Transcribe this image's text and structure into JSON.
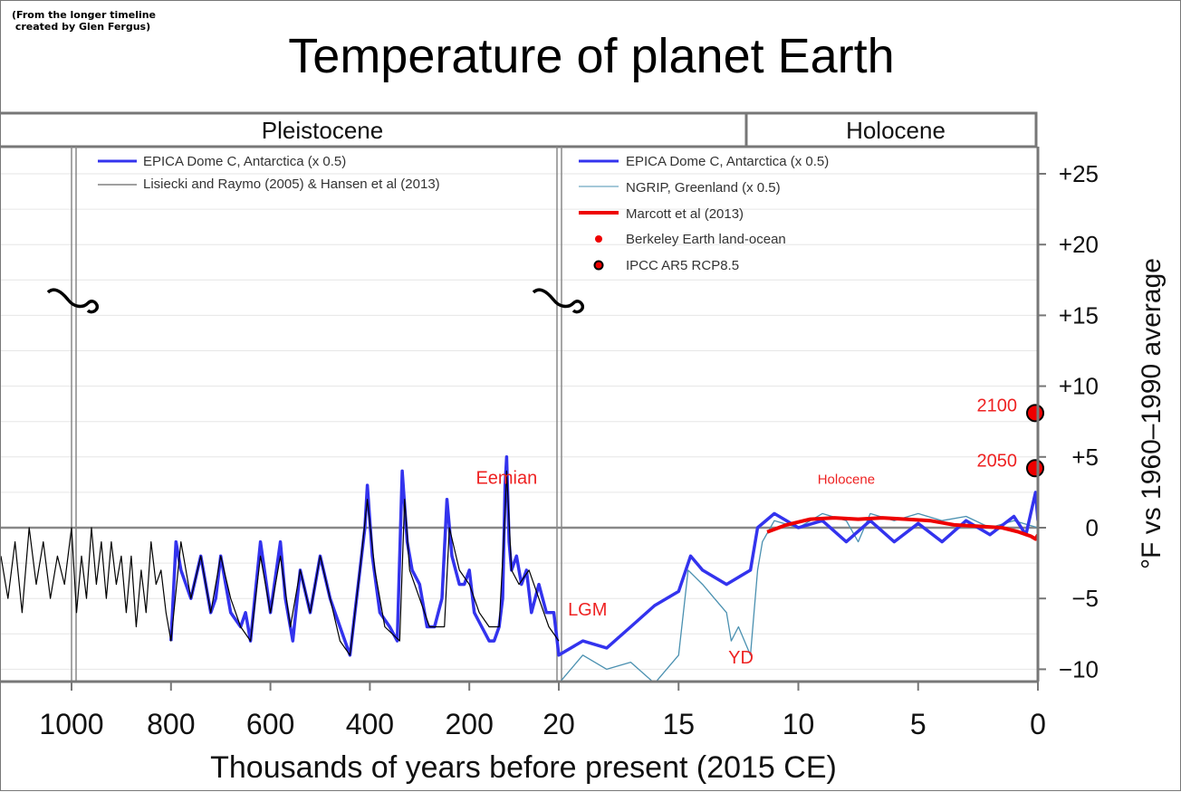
{
  "credit": "(From the longer timeline\n created by Glen Fergus)",
  "chart_data": {
    "type": "line",
    "title": "Temperature of planet Earth",
    "xlabel": "Thousands of years before present (2015 CE)",
    "ylabel": "°F vs 1960–1990 average",
    "ylim": [
      -11,
      27
    ],
    "x_segments": [
      {
        "name": "deep",
        "from_kyr": 1100,
        "to_kyr": 1000
      },
      {
        "name": "pleistocene-long",
        "from_kyr": 1000,
        "to_kyr": 20
      },
      {
        "name": "recent",
        "from_kyr": 20,
        "to_kyr": 0
      }
    ],
    "x_tick_labels": [
      "1000",
      "800",
      "600",
      "400",
      "200",
      "20",
      "15",
      "10",
      "5",
      "0"
    ],
    "x_tick_values_kyr": [
      1000,
      800,
      600,
      400,
      200,
      20,
      15,
      10,
      5,
      0
    ],
    "y_tick_labels": [
      "+25",
      "+20",
      "+15",
      "+10",
      "+5",
      "0",
      "−5",
      "−10"
    ],
    "y_tick_values": [
      25,
      20,
      15,
      10,
      5,
      0,
      -5,
      -10
    ],
    "epochs": [
      {
        "label": "Pleistocene"
      },
      {
        "label": "Holocene"
      }
    ],
    "legend_left": [
      {
        "label": "EPICA Dome C, Antarctica (x 0.5)",
        "color": "#3333ee"
      },
      {
        "label": "Lisiecki and Raymo (2005) & Hansen et al (2013)",
        "color": "#000000"
      }
    ],
    "legend_right": [
      {
        "label": "EPICA Dome C, Antarctica (x 0.5)",
        "color": "#3333ee"
      },
      {
        "label": "NGRIP, Greenland (x 0.5)",
        "color": "#4a90b0"
      },
      {
        "label": "Marcott et al (2013)",
        "color": "#ee0000"
      },
      {
        "label": "Berkeley Earth land-ocean",
        "color": "#ee0000"
      },
      {
        "label": "IPCC AR5 RCP8.5",
        "color": "#ee0000"
      }
    ],
    "annotations": [
      {
        "label": "Eemian",
        "x_kyr": 125,
        "y": 3.1
      },
      {
        "label": "LGM",
        "x_kyr": 18.8,
        "y": -6.2
      },
      {
        "label": "YD",
        "x_kyr": 12.4,
        "y": -9.6
      },
      {
        "label": "Holocene",
        "x_kyr": 8,
        "y": 3.1
      }
    ],
    "projections": [
      {
        "label": "2100",
        "x_kyr": 0,
        "y": 8.1
      },
      {
        "label": "2050",
        "x_kyr": 0,
        "y": 4.2
      }
    ],
    "series": [
      {
        "name": "Lisiecki and Raymo (2005) & Hansen et al (2013)",
        "color": "#000000",
        "points": [
          [
            1100,
            -2
          ],
          [
            1090,
            -5
          ],
          [
            1080,
            -1
          ],
          [
            1070,
            -6
          ],
          [
            1060,
            0
          ],
          [
            1050,
            -4
          ],
          [
            1040,
            -1
          ],
          [
            1030,
            -5
          ],
          [
            1020,
            -2
          ],
          [
            1010,
            -4
          ],
          [
            1000,
            0
          ],
          [
            990,
            -6
          ],
          [
            980,
            -2
          ],
          [
            970,
            -5
          ],
          [
            960,
            0
          ],
          [
            950,
            -4
          ],
          [
            940,
            -1
          ],
          [
            930,
            -5
          ],
          [
            920,
            -1
          ],
          [
            910,
            -4
          ],
          [
            900,
            -2
          ],
          [
            890,
            -6
          ],
          [
            880,
            -2
          ],
          [
            870,
            -7
          ],
          [
            860,
            -3
          ],
          [
            850,
            -6
          ],
          [
            840,
            -1
          ],
          [
            830,
            -4
          ],
          [
            820,
            -3
          ],
          [
            810,
            -6
          ],
          [
            800,
            -8
          ],
          [
            780,
            -1
          ],
          [
            760,
            -5
          ],
          [
            740,
            -2
          ],
          [
            720,
            -6
          ],
          [
            700,
            -2
          ],
          [
            680,
            -5
          ],
          [
            660,
            -7
          ],
          [
            640,
            -8
          ],
          [
            620,
            -2
          ],
          [
            600,
            -6
          ],
          [
            580,
            -2
          ],
          [
            560,
            -7
          ],
          [
            540,
            -3
          ],
          [
            520,
            -6
          ],
          [
            500,
            -2
          ],
          [
            480,
            -5
          ],
          [
            460,
            -8
          ],
          [
            440,
            -9
          ],
          [
            420,
            -3
          ],
          [
            405,
            2
          ],
          [
            390,
            -3
          ],
          [
            370,
            -7
          ],
          [
            340,
            -8
          ],
          [
            330,
            2
          ],
          [
            320,
            -3
          ],
          [
            300,
            -5
          ],
          [
            280,
            -7
          ],
          [
            250,
            -7
          ],
          [
            240,
            0
          ],
          [
            220,
            -3
          ],
          [
            200,
            -4
          ],
          [
            180,
            -6
          ],
          [
            160,
            -7
          ],
          [
            140,
            -7
          ],
          [
            128,
            1
          ],
          [
            125,
            4
          ],
          [
            115,
            -3
          ],
          [
            100,
            -4
          ],
          [
            80,
            -3
          ],
          [
            60,
            -5
          ],
          [
            40,
            -7
          ],
          [
            20,
            -8
          ]
        ]
      },
      {
        "name": "EPICA Dome C, Antarctica (x 0.5)",
        "color": "#3333ee",
        "points": [
          [
            800,
            -8
          ],
          [
            790,
            -1
          ],
          [
            780,
            -3
          ],
          [
            760,
            -5
          ],
          [
            740,
            -2
          ],
          [
            720,
            -6
          ],
          [
            710,
            -5
          ],
          [
            700,
            -2
          ],
          [
            690,
            -4
          ],
          [
            680,
            -6
          ],
          [
            660,
            -7
          ],
          [
            650,
            -6
          ],
          [
            640,
            -8
          ],
          [
            620,
            -1
          ],
          [
            600,
            -6
          ],
          [
            580,
            -1
          ],
          [
            570,
            -5
          ],
          [
            555,
            -8
          ],
          [
            540,
            -3
          ],
          [
            520,
            -6
          ],
          [
            500,
            -2
          ],
          [
            480,
            -5
          ],
          [
            460,
            -7
          ],
          [
            440,
            -9
          ],
          [
            430,
            -6
          ],
          [
            410,
            0
          ],
          [
            405,
            3
          ],
          [
            395,
            -2
          ],
          [
            380,
            -6
          ],
          [
            360,
            -7
          ],
          [
            345,
            -8
          ],
          [
            335,
            4
          ],
          [
            325,
            -1
          ],
          [
            315,
            -3
          ],
          [
            300,
            -4
          ],
          [
            285,
            -7
          ],
          [
            270,
            -7
          ],
          [
            255,
            -5
          ],
          [
            245,
            2
          ],
          [
            235,
            -2
          ],
          [
            220,
            -4
          ],
          [
            210,
            -4
          ],
          [
            200,
            -3
          ],
          [
            190,
            -6
          ],
          [
            175,
            -7
          ],
          [
            160,
            -8
          ],
          [
            150,
            -8
          ],
          [
            140,
            -7
          ],
          [
            133,
            -5
          ],
          [
            128,
            3
          ],
          [
            125,
            5
          ],
          [
            120,
            -1
          ],
          [
            115,
            -3
          ],
          [
            105,
            -2
          ],
          [
            95,
            -4
          ],
          [
            85,
            -3
          ],
          [
            75,
            -6
          ],
          [
            60,
            -4
          ],
          [
            45,
            -6
          ],
          [
            30,
            -6
          ],
          [
            20,
            -9
          ],
          [
            19,
            -8
          ],
          [
            18,
            -8.5
          ],
          [
            17,
            -7
          ],
          [
            16,
            -5.5
          ],
          [
            15,
            -4.5
          ],
          [
            14.5,
            -2
          ],
          [
            14,
            -3
          ],
          [
            13,
            -4
          ],
          [
            12.5,
            -3.5
          ],
          [
            12,
            -3
          ],
          [
            11.7,
            0
          ],
          [
            11,
            1
          ],
          [
            10,
            0
          ],
          [
            9,
            0.5
          ],
          [
            8,
            -1
          ],
          [
            7,
            0.5
          ],
          [
            6,
            -1
          ],
          [
            5,
            0.3
          ],
          [
            4,
            -1
          ],
          [
            3,
            0.5
          ],
          [
            2,
            -0.5
          ],
          [
            1,
            0.8
          ],
          [
            0.5,
            -0.5
          ],
          [
            0.1,
            2.5
          ],
          [
            0,
            0.5
          ]
        ]
      },
      {
        "name": "NGRIP, Greenland (x 0.5)",
        "color": "#4a90b0",
        "points": [
          [
            20,
            -11
          ],
          [
            19,
            -9
          ],
          [
            18,
            -10
          ],
          [
            17,
            -9.5
          ],
          [
            16,
            -11
          ],
          [
            15,
            -9
          ],
          [
            14.6,
            -3
          ],
          [
            14,
            -4
          ],
          [
            13.5,
            -5
          ],
          [
            13,
            -6
          ],
          [
            12.8,
            -8
          ],
          [
            12.5,
            -7
          ],
          [
            12,
            -9
          ],
          [
            11.7,
            -3
          ],
          [
            11.5,
            -1
          ],
          [
            11,
            0.5
          ],
          [
            10,
            0
          ],
          [
            9,
            1
          ],
          [
            8,
            0.5
          ],
          [
            7.5,
            -1
          ],
          [
            7,
            1
          ],
          [
            6,
            0.5
          ],
          [
            5,
            1
          ],
          [
            4,
            0.5
          ],
          [
            3,
            0.8
          ],
          [
            2,
            0
          ],
          [
            1,
            0.5
          ],
          [
            0,
            0
          ]
        ]
      },
      {
        "name": "Marcott et al (2013)",
        "color": "#ee0000",
        "points": [
          [
            11.3,
            -0.3
          ],
          [
            10.5,
            0.2
          ],
          [
            9.5,
            0.6
          ],
          [
            8.5,
            0.7
          ],
          [
            7.5,
            0.6
          ],
          [
            6.5,
            0.7
          ],
          [
            5.5,
            0.6
          ],
          [
            4.5,
            0.5
          ],
          [
            3.5,
            0.2
          ],
          [
            2.5,
            0.1
          ],
          [
            1.5,
            0
          ],
          [
            0.8,
            -0.3
          ],
          [
            0.3,
            -0.6
          ],
          [
            0.1,
            -0.8
          ],
          [
            0,
            -0.5
          ]
        ]
      }
    ]
  }
}
